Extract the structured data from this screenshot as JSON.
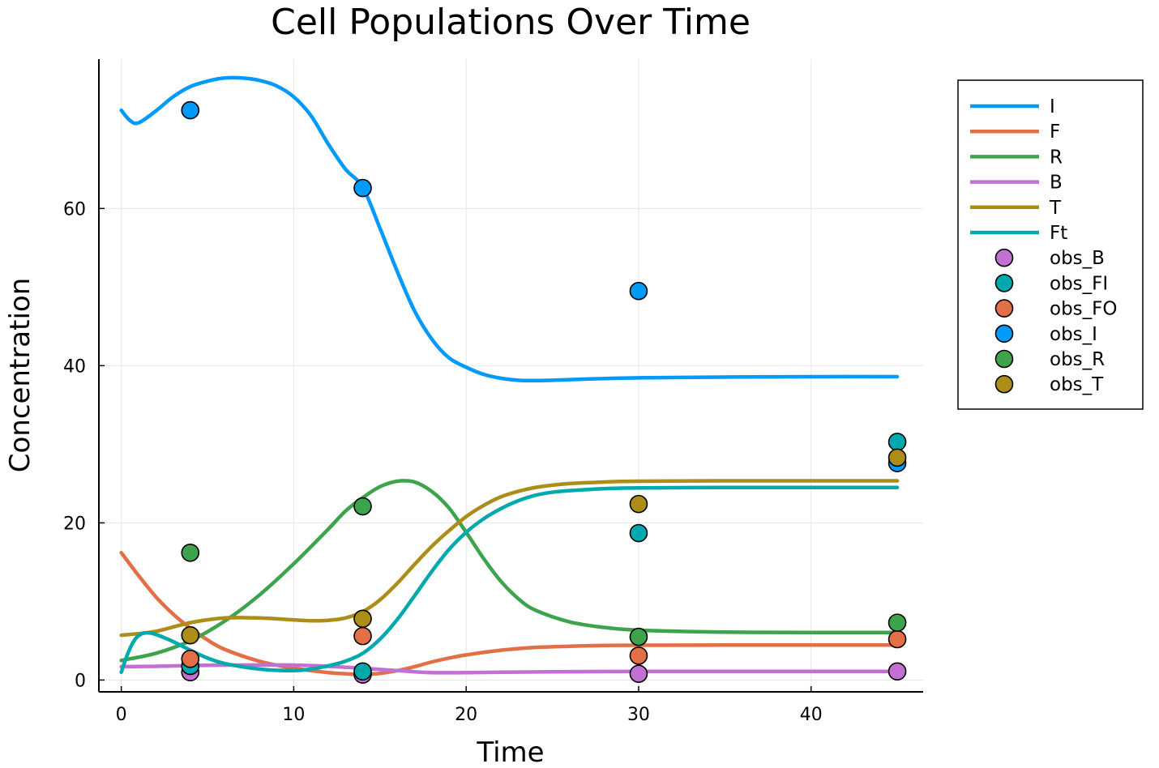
{
  "chart_data": {
    "type": "line",
    "title": "Cell Populations Over Time",
    "xlabel": "Time",
    "ylabel": "Concentration",
    "xlim": [
      -1.3,
      46.5
    ],
    "ylim": [
      -1.5,
      79
    ],
    "xticks": [
      0,
      10,
      20,
      30,
      40
    ],
    "yticks": [
      0,
      20,
      40,
      60
    ],
    "grid": true,
    "legend_position": "outer-right",
    "series": [
      {
        "name": "I",
        "color": "#009af9",
        "x": [
          0,
          0.5,
          1,
          2,
          3,
          4,
          5,
          6,
          7,
          8,
          9,
          10,
          11,
          12,
          13,
          14,
          15,
          16,
          17,
          18,
          19,
          20,
          21,
          22,
          23,
          24,
          25,
          27,
          30,
          35,
          40,
          45
        ],
        "y": [
          72.5,
          71.2,
          70.9,
          72.4,
          74.2,
          75.5,
          76.2,
          76.6,
          76.6,
          76.3,
          75.6,
          74.2,
          71.8,
          68.2,
          65.0,
          62.7,
          57.5,
          52.0,
          47.0,
          43.4,
          41.0,
          39.8,
          38.9,
          38.4,
          38.15,
          38.1,
          38.15,
          38.3,
          38.45,
          38.55,
          38.6,
          38.6
        ]
      },
      {
        "name": "F",
        "color": "#e26f46",
        "x": [
          0,
          1,
          2,
          3,
          4,
          5,
          6,
          8,
          10,
          12,
          13,
          14,
          15,
          16,
          17,
          18,
          19,
          20,
          22,
          24,
          26,
          28,
          30,
          35,
          40,
          45
        ],
        "y": [
          16.2,
          13.3,
          10.6,
          8.4,
          6.6,
          5.1,
          3.9,
          2.4,
          1.5,
          0.95,
          0.8,
          0.75,
          0.85,
          1.2,
          1.7,
          2.3,
          2.8,
          3.2,
          3.8,
          4.15,
          4.3,
          4.4,
          4.42,
          4.45,
          4.45,
          4.45
        ]
      },
      {
        "name": "R",
        "color": "#3da44d",
        "x": [
          0,
          2,
          4,
          6,
          8,
          10,
          12,
          13,
          14,
          15,
          16,
          17,
          18,
          19,
          20,
          21,
          22,
          23,
          24,
          26,
          28,
          30,
          35,
          40,
          45
        ],
        "y": [
          2.5,
          3.4,
          5.0,
          7.5,
          10.8,
          14.8,
          19.2,
          21.5,
          23.2,
          24.6,
          25.3,
          25.2,
          24.0,
          21.9,
          18.8,
          15.5,
          12.6,
          10.4,
          8.9,
          7.4,
          6.7,
          6.35,
          6.1,
          6.05,
          6.05
        ]
      },
      {
        "name": "B",
        "color": "#c271d2",
        "x": [
          0,
          2,
          4,
          6,
          8,
          10,
          12,
          14,
          16,
          18,
          20,
          22,
          25,
          30,
          35,
          40,
          45
        ],
        "y": [
          1.7,
          1.75,
          1.85,
          1.9,
          1.92,
          1.9,
          1.75,
          1.5,
          1.2,
          0.95,
          0.95,
          1.0,
          1.05,
          1.1,
          1.1,
          1.1,
          1.1
        ]
      },
      {
        "name": "T",
        "color": "#ac8d18",
        "x": [
          0,
          2,
          4,
          6,
          8,
          10,
          11,
          12,
          13,
          14,
          15,
          16,
          17,
          18,
          19,
          20,
          21,
          22,
          23,
          24,
          25,
          26,
          28,
          30,
          35,
          40,
          45
        ],
        "y": [
          5.7,
          6.2,
          7.3,
          7.9,
          7.9,
          7.65,
          7.55,
          7.6,
          7.9,
          8.7,
          10.2,
          12.3,
          14.7,
          17.0,
          19.0,
          20.8,
          22.2,
          23.3,
          24.0,
          24.5,
          24.8,
          25.0,
          25.2,
          25.3,
          25.35,
          25.35,
          25.35
        ]
      },
      {
        "name": "Ft",
        "color": "#00a9ad",
        "x": [
          0,
          0.4,
          0.8,
          1.2,
          1.6,
          2,
          3,
          4,
          5,
          6,
          8,
          10,
          11,
          12,
          13,
          14,
          15,
          16,
          17,
          18,
          19,
          20,
          21,
          22,
          23,
          24,
          25,
          26,
          28,
          30,
          35,
          40,
          45
        ],
        "y": [
          1.0,
          3.5,
          5.2,
          5.9,
          6.0,
          5.8,
          4.9,
          3.8,
          2.8,
          2.1,
          1.4,
          1.2,
          1.4,
          1.8,
          2.4,
          3.4,
          5.2,
          7.7,
          10.7,
          13.8,
          16.6,
          18.8,
          20.5,
          21.8,
          22.8,
          23.5,
          23.9,
          24.1,
          24.35,
          24.45,
          24.5,
          24.5,
          24.5
        ]
      }
    ],
    "observations": [
      {
        "name": "obs_B",
        "color": "#c271d2",
        "x": [
          4,
          14,
          30,
          45
        ],
        "y": [
          1.0,
          0.7,
          0.8,
          1.1
        ]
      },
      {
        "name": "obs_FI",
        "color": "#00a9ad",
        "x": [
          4,
          14,
          30,
          45
        ],
        "y": [
          1.8,
          1.1,
          18.7,
          30.3
        ]
      },
      {
        "name": "obs_FO",
        "color": "#e26f46",
        "x": [
          4,
          14,
          30,
          45
        ],
        "y": [
          2.7,
          5.6,
          3.1,
          5.2
        ]
      },
      {
        "name": "obs_I",
        "color": "#009af9",
        "x": [
          4,
          14,
          30,
          45
        ],
        "y": [
          72.5,
          62.6,
          49.5,
          27.6
        ]
      },
      {
        "name": "obs_R",
        "color": "#3da44d",
        "x": [
          4,
          14,
          30,
          45
        ],
        "y": [
          16.2,
          22.1,
          5.5,
          7.3
        ]
      },
      {
        "name": "obs_T",
        "color": "#ac8d18",
        "x": [
          4,
          14,
          30,
          45
        ],
        "y": [
          5.7,
          7.8,
          22.4,
          28.3
        ]
      }
    ]
  }
}
